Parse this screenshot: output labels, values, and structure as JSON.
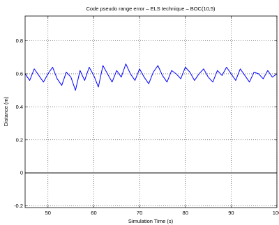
{
  "chart_data": {
    "type": "line",
    "title": "Code pseudo range error – ELS technique – BOC(10,5)",
    "xlabel": "Simulation Time (s)",
    "ylabel": "Distance (m)",
    "xlim": [
      45,
      100
    ],
    "ylim": [
      -0.21,
      0.95
    ],
    "xticks": [
      50,
      60,
      70,
      80,
      90,
      100
    ],
    "yticks": [
      -0.2,
      0,
      0.2,
      0.4,
      0.6,
      0.8
    ],
    "xtick_labels": [
      "50",
      "60",
      "70",
      "80",
      "90",
      "100"
    ],
    "ytick_labels": [
      "-0.2",
      "0",
      "0.2",
      "0.4",
      "0.6",
      "0.8"
    ],
    "grid": true,
    "series": [
      {
        "color": "#0000ff",
        "x": [
          45,
          46,
          47,
          48,
          49,
          50,
          51,
          52,
          53,
          54,
          55,
          56,
          57,
          58,
          59,
          60,
          61,
          62,
          63,
          64,
          65,
          66,
          67,
          68,
          69,
          70,
          71,
          72,
          73,
          74,
          75,
          76,
          77,
          78,
          79,
          80,
          81,
          82,
          83,
          84,
          85,
          86,
          87,
          88,
          89,
          90,
          91,
          92,
          93,
          94,
          95,
          96,
          97,
          98,
          99,
          100
        ],
        "values": [
          0.6,
          0.56,
          0.63,
          0.59,
          0.55,
          0.6,
          0.64,
          0.57,
          0.53,
          0.61,
          0.58,
          0.5,
          0.62,
          0.56,
          0.64,
          0.59,
          0.52,
          0.65,
          0.6,
          0.55,
          0.62,
          0.58,
          0.66,
          0.6,
          0.56,
          0.63,
          0.58,
          0.54,
          0.61,
          0.65,
          0.59,
          0.55,
          0.62,
          0.6,
          0.57,
          0.64,
          0.61,
          0.56,
          0.6,
          0.63,
          0.58,
          0.55,
          0.62,
          0.59,
          0.64,
          0.6,
          0.56,
          0.63,
          0.59,
          0.55,
          0.61,
          0.6,
          0.57,
          0.62,
          0.58,
          0.6
        ]
      },
      {
        "color": "#000000",
        "x": [
          45,
          100
        ],
        "values": [
          0,
          0
        ]
      }
    ]
  }
}
